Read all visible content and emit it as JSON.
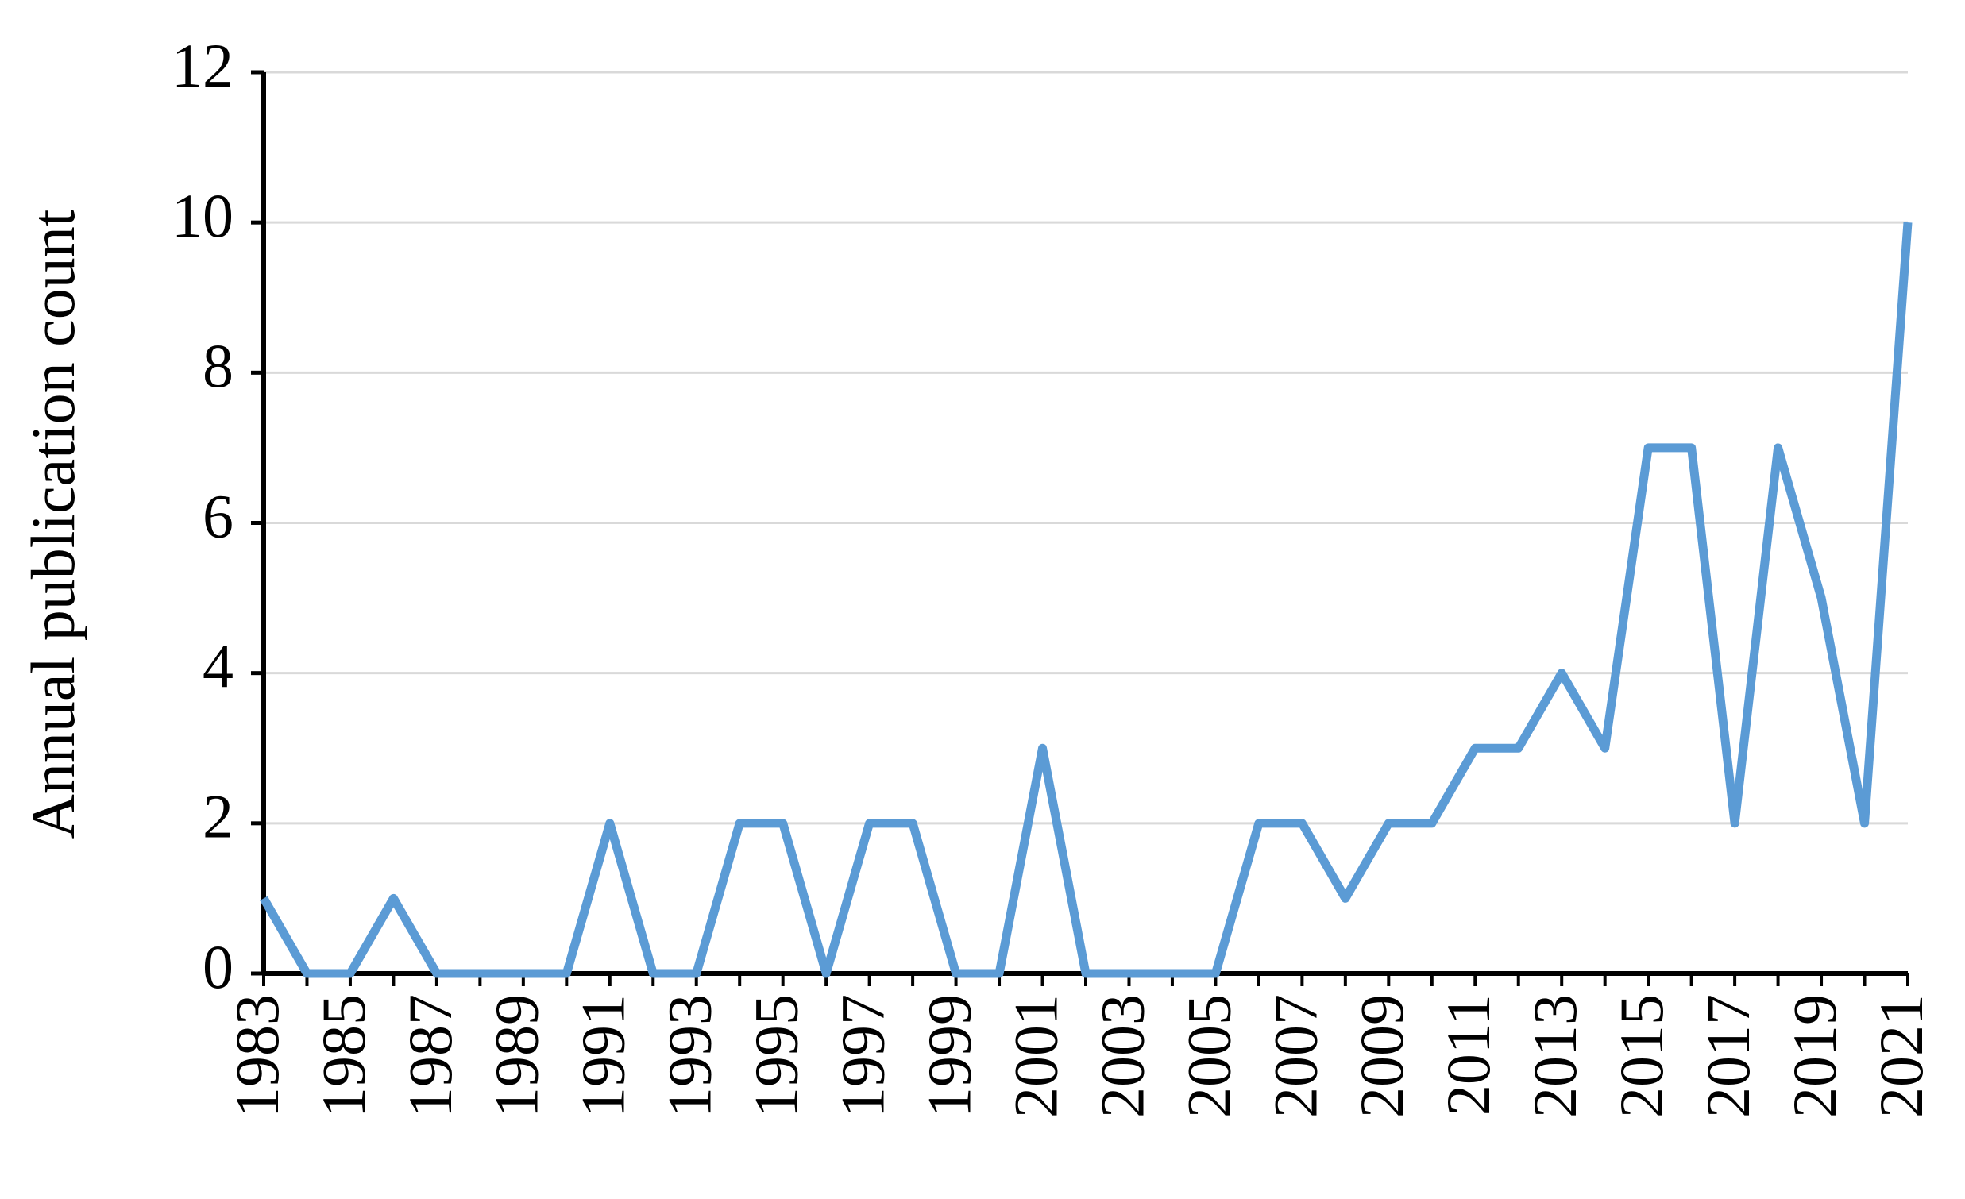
{
  "chart_data": {
    "type": "line",
    "y_label": "Annual publication count",
    "x": [
      1983,
      1984,
      1985,
      1986,
      1987,
      1988,
      1989,
      1990,
      1991,
      1992,
      1993,
      1994,
      1995,
      1996,
      1997,
      1998,
      1999,
      2000,
      2001,
      2002,
      2003,
      2004,
      2005,
      2006,
      2007,
      2008,
      2009,
      2010,
      2011,
      2012,
      2013,
      2014,
      2015,
      2016,
      2017,
      2018,
      2019,
      2020,
      2021
    ],
    "values": [
      1,
      0,
      0,
      1,
      0,
      0,
      0,
      0,
      2,
      0,
      0,
      2,
      2,
      0,
      2,
      2,
      0,
      0,
      3,
      0,
      0,
      0,
      0,
      2,
      2,
      1,
      2,
      2,
      3,
      3,
      4,
      3,
      7,
      7,
      2,
      7,
      5,
      2,
      10
    ],
    "color": "#5b9bd5",
    "xlim": [
      1983,
      2021
    ],
    "xticks": [
      1983,
      1985,
      1987,
      1989,
      1991,
      1993,
      1995,
      1997,
      1999,
      2001,
      2003,
      2005,
      2007,
      2009,
      2011,
      2013,
      2015,
      2017,
      2019,
      2021
    ],
    "ylim": [
      0,
      12
    ],
    "yticks": [
      0,
      2,
      4,
      6,
      8,
      10,
      12
    ],
    "grid": true
  }
}
